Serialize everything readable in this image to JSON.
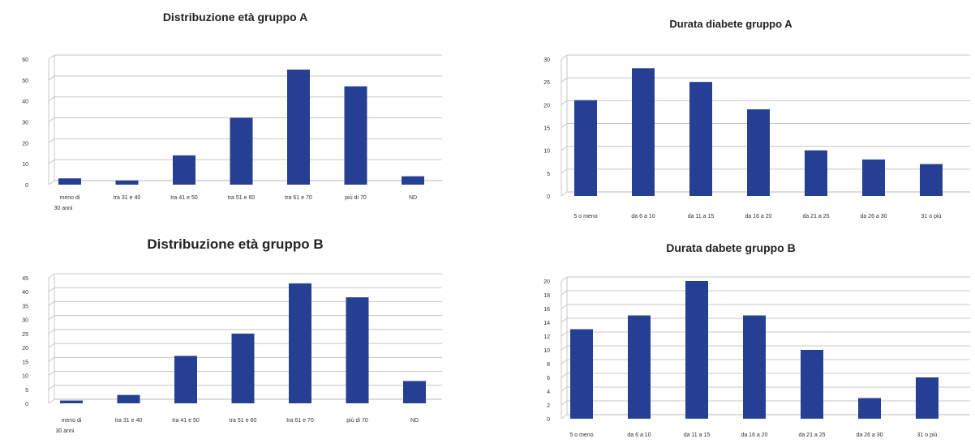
{
  "colors": {
    "bar": "#253f92",
    "grid": "#c8c8c8",
    "axis": "#b8b8b8"
  },
  "chart_data": [
    {
      "type": "bar",
      "title": "Distribuzione età gruppo A",
      "categories": [
        [
          "meno di",
          "30 anni"
        ],
        [
          "tra 31 e 40"
        ],
        [
          "tra 41 e 50"
        ],
        [
          "tra 51 e 60"
        ],
        [
          "tra 61 e 70"
        ],
        [
          "più di 70"
        ],
        [
          "ND"
        ]
      ],
      "values": [
        3,
        2,
        14,
        32,
        55,
        47,
        4
      ],
      "yticks": [
        0,
        10,
        20,
        30,
        40,
        50,
        60
      ],
      "ylim": [
        0,
        60
      ],
      "grid": true
    },
    {
      "type": "bar",
      "title": "Durata diabete gruppo A",
      "categories": [
        [
          "5 o meno"
        ],
        [
          "da 6 a 10"
        ],
        [
          "da 11 a 15"
        ],
        [
          "da 16 a 20"
        ],
        [
          "da 21 a 25"
        ],
        [
          "da 26 a 30"
        ],
        [
          "31 o più"
        ]
      ],
      "values": [
        21,
        28,
        25,
        19,
        10,
        8,
        7
      ],
      "yticks": [
        0,
        5,
        10,
        15,
        20,
        25,
        30
      ],
      "ylim": [
        0,
        30
      ],
      "grid": true
    },
    {
      "type": "bar",
      "title": "Distribuzione età gruppo B",
      "categories": [
        [
          "meno di",
          "30 anni"
        ],
        [
          "tra 31 e 40"
        ],
        [
          "tra 41 e 50"
        ],
        [
          "tra 51 e 60"
        ],
        [
          "tra 61 e 70"
        ],
        [
          "più di 70"
        ],
        [
          "ND"
        ]
      ],
      "values": [
        1,
        3,
        17,
        25,
        43,
        38,
        8
      ],
      "yticks": [
        0,
        5,
        10,
        15,
        20,
        25,
        30,
        35,
        40,
        45
      ],
      "ylim": [
        0,
        45
      ],
      "grid": true
    },
    {
      "type": "bar",
      "title": "Durata dabete gruppo B",
      "categories": [
        [
          "5 o meno"
        ],
        [
          "da 6 a 10"
        ],
        [
          "da 11 a 15"
        ],
        [
          "da 16 a 20"
        ],
        [
          "da 21 a 25"
        ],
        [
          "da 26 a 30"
        ],
        [
          "31 o più"
        ]
      ],
      "values": [
        13,
        15,
        20,
        15,
        10,
        3,
        6
      ],
      "yticks": [
        0,
        2,
        4,
        6,
        8,
        10,
        12,
        14,
        16,
        18,
        20
      ],
      "ylim": [
        0,
        20
      ],
      "grid": true
    }
  ]
}
